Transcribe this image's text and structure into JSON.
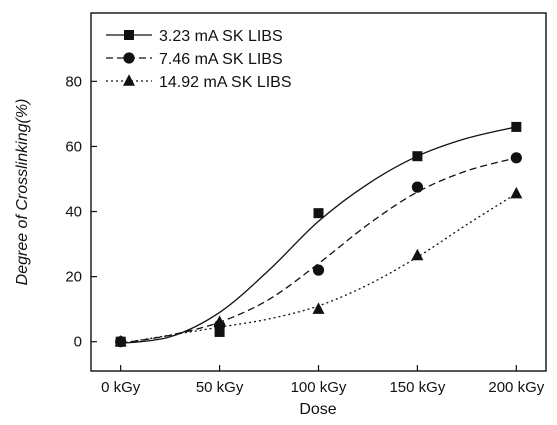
{
  "chart_data": {
    "type": "line",
    "xlabel": "Dose",
    "ylabel": "Degree of Crosslinking(%)",
    "categories": [
      "0 kGy",
      "50 kGy",
      "100 kGy",
      "150 kGy",
      "200 kGy"
    ],
    "x_values": [
      0,
      50,
      100,
      150,
      200
    ],
    "xlim": [
      -15,
      215
    ],
    "ylim": [
      -9,
      101
    ],
    "y_ticks": [
      0,
      20,
      40,
      60,
      80
    ],
    "grid": false,
    "legend_position": "top-left",
    "series": [
      {
        "name": "3.23 mA SK LIBS",
        "marker": "square",
        "line_style": "solid",
        "points": [
          [
            0,
            0
          ],
          [
            50,
            3
          ],
          [
            100,
            39.5
          ],
          [
            150,
            57
          ],
          [
            200,
            66
          ]
        ],
        "fit": [
          [
            0,
            -0.5
          ],
          [
            25,
            1.5
          ],
          [
            50,
            9
          ],
          [
            75,
            22
          ],
          [
            100,
            37
          ],
          [
            125,
            48.5
          ],
          [
            150,
            57
          ],
          [
            175,
            62.5
          ],
          [
            200,
            66
          ]
        ]
      },
      {
        "name": "7.46 mA SK LIBS",
        "marker": "circle",
        "line_style": "dashed",
        "points": [
          [
            0,
            0
          ],
          [
            50,
            5
          ],
          [
            100,
            22
          ],
          [
            150,
            47.5
          ],
          [
            200,
            56.5
          ]
        ],
        "fit": [
          [
            0,
            -0.5
          ],
          [
            25,
            2
          ],
          [
            50,
            6
          ],
          [
            75,
            13
          ],
          [
            100,
            24
          ],
          [
            125,
            36
          ],
          [
            150,
            46
          ],
          [
            175,
            52.5
          ],
          [
            200,
            56.5
          ]
        ]
      },
      {
        "name": "14.92 mA SK LIBS",
        "marker": "triangle",
        "line_style": "dotted",
        "points": [
          [
            0,
            0
          ],
          [
            50,
            6
          ],
          [
            100,
            10
          ],
          [
            150,
            26.5
          ],
          [
            200,
            45.5
          ]
        ],
        "fit": [
          [
            0,
            -0.5
          ],
          [
            25,
            2
          ],
          [
            50,
            4.5
          ],
          [
            75,
            7
          ],
          [
            100,
            11
          ],
          [
            125,
            17.5
          ],
          [
            150,
            26
          ],
          [
            175,
            36
          ],
          [
            200,
            45.5
          ]
        ]
      }
    ]
  }
}
